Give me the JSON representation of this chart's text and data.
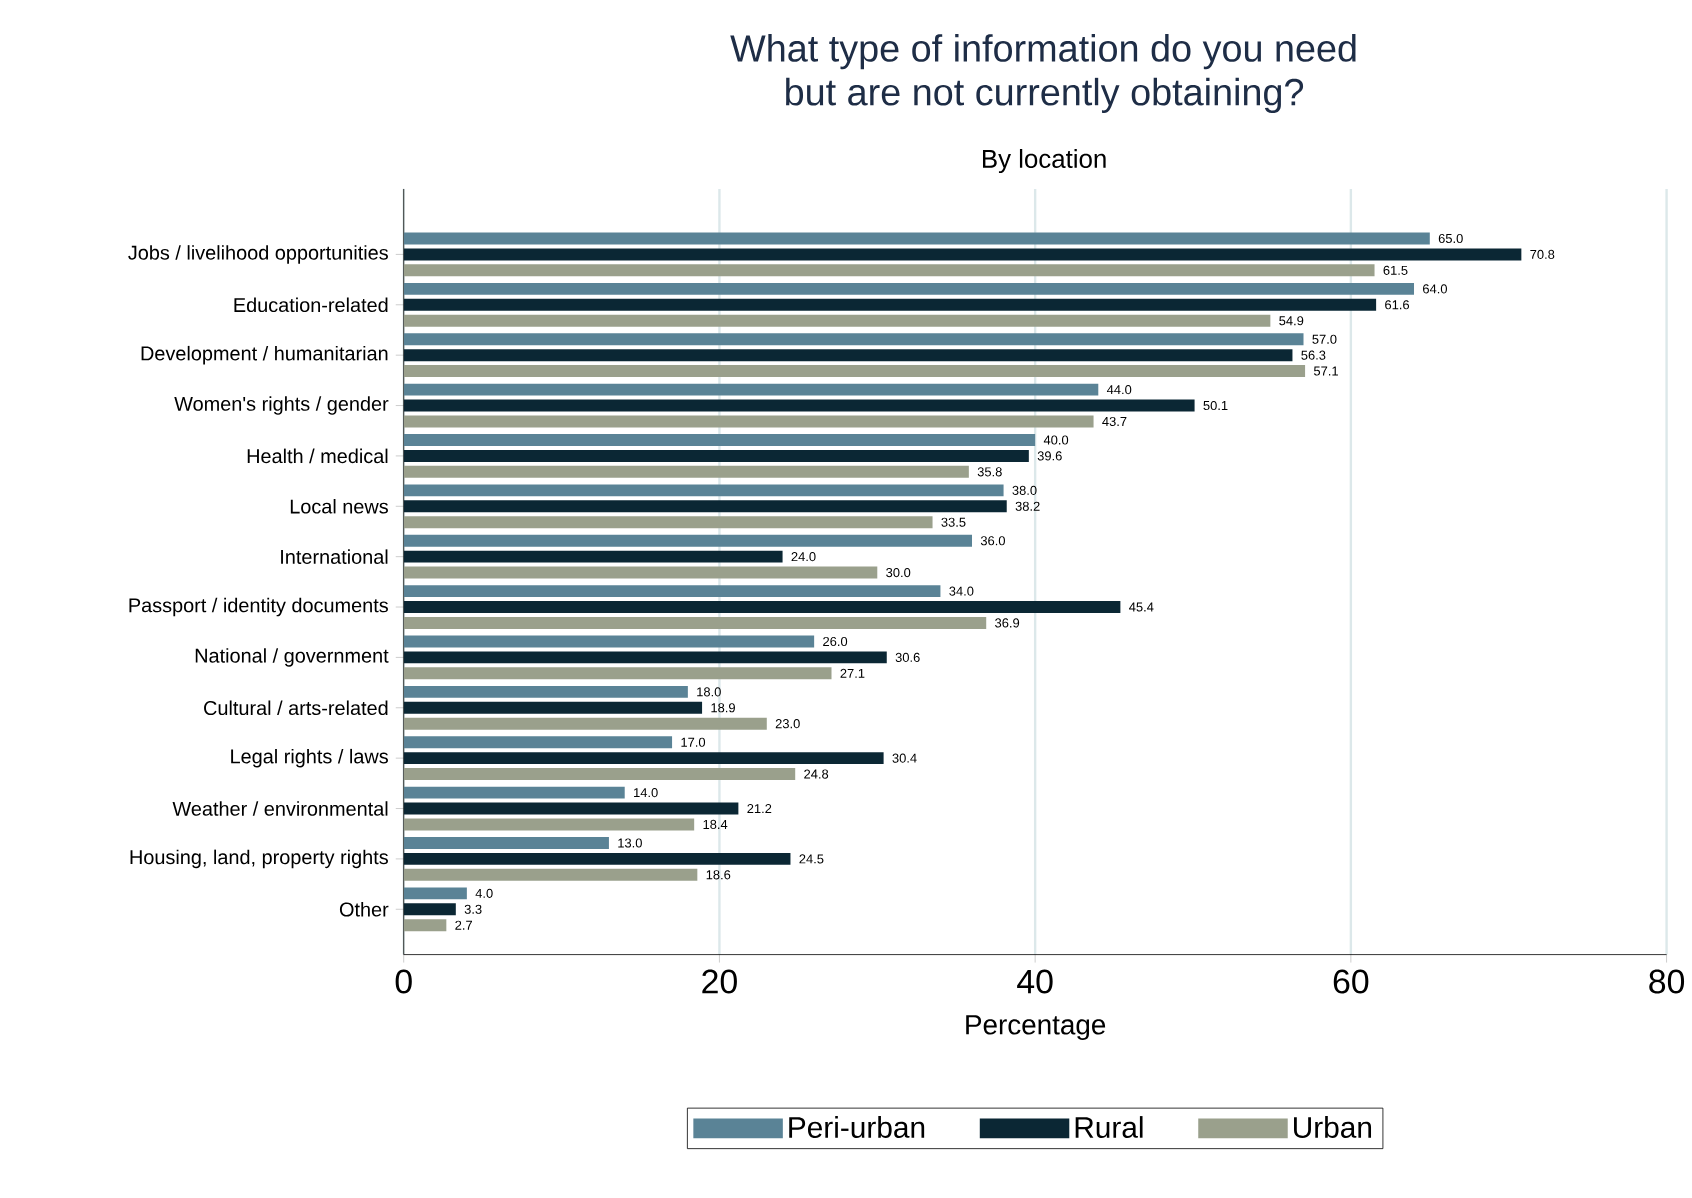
{
  "chart_data": {
    "type": "bar",
    "orientation": "horizontal",
    "title": "What type of information do you need\nbut are not currently obtaining?",
    "subtitle": "By location",
    "xlabel": "Percentage",
    "categories": [
      "Jobs / livelihood opportunities",
      "Education-related",
      "Development / humanitarian",
      "Women's rights / gender",
      "Health / medical",
      "Local news",
      "International",
      "Passport / identity documents",
      "National / government",
      "Cultural / arts-related",
      "Legal rights / laws",
      "Weather / environmental",
      "Housing, land, property rights",
      "Other"
    ],
    "series": [
      {
        "name": "Peri-urban",
        "color": "#5a8396",
        "values": [
          65.0,
          64.0,
          57.0,
          44.0,
          40.0,
          38.0,
          36.0,
          34.0,
          26.0,
          18.0,
          17.0,
          14.0,
          13.0,
          4.0
        ],
        "value_labels": [
          "65.0",
          "64.0",
          "57.0",
          "44.0",
          "40.0",
          "38.0",
          "36.0",
          "34.0",
          "26.0",
          "18.0",
          "17.0",
          "14.0",
          "13.0",
          "4.0"
        ]
      },
      {
        "name": "Rural",
        "color": "#0b2734",
        "values": [
          70.8,
          61.6,
          56.3,
          50.1,
          39.6,
          38.2,
          24.0,
          45.4,
          30.6,
          18.9,
          30.4,
          21.2,
          24.5,
          3.3
        ],
        "value_labels": [
          "70.8",
          "61.6",
          "56.3",
          "50.1",
          "39.6",
          "38.2",
          "24.0",
          "45.4",
          "30.6",
          "18.9",
          "30.4",
          "21.2",
          "24.5",
          "3.3"
        ]
      },
      {
        "name": "Urban",
        "color": "#9aa08c",
        "values": [
          61.5,
          54.9,
          57.1,
          43.7,
          35.8,
          33.5,
          30.0,
          36.9,
          27.1,
          23.0,
          24.8,
          18.4,
          18.6,
          2.7
        ],
        "value_labels": [
          "61.5",
          "54.9",
          "57.1",
          "43.7",
          "35.8",
          "33.5",
          "30.0",
          "36.9",
          "27.1",
          "23.0",
          "24.8",
          "18.4",
          "18.6",
          "2.7"
        ]
      }
    ],
    "xlim": [
      0,
      80
    ],
    "xticks": [
      0,
      20,
      40,
      60,
      80
    ],
    "grid": "x",
    "legend": "bottom"
  }
}
